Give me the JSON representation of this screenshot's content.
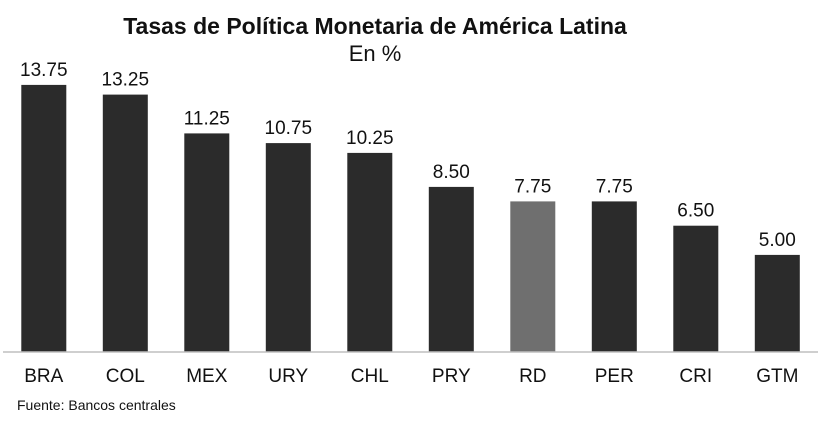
{
  "chart_data": {
    "type": "bar",
    "title": "Tasas de Política Monetaria de América Latina",
    "subtitle": "En %",
    "categories": [
      "BRA",
      "COL",
      "MEX",
      "URY",
      "CHL",
      "PRY",
      "RD",
      "PER",
      "CRI",
      "GTM"
    ],
    "values": [
      13.75,
      13.25,
      11.25,
      10.75,
      10.25,
      8.5,
      7.75,
      7.75,
      6.5,
      5.0
    ],
    "value_labels": [
      "13.75",
      "13.25",
      "11.25",
      "10.75",
      "10.25",
      "8.50",
      "7.75",
      "7.75",
      "6.50",
      "5.00"
    ],
    "highlight_category": "RD",
    "xlabel": "",
    "ylabel": "",
    "ylim": [
      0,
      14
    ],
    "grid": false,
    "source": "Fuente: Bancos centrales"
  },
  "colors": {
    "bar": "#2b2b2b",
    "highlight_bar": "#6f6f6f",
    "axis": "#bfbfbf",
    "text": "#111111"
  }
}
